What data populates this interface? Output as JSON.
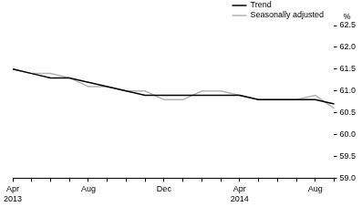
{
  "chart_data": {
    "type": "line",
    "ylabel": "%",
    "categories": [
      "Apr 2013",
      null,
      null,
      null,
      "Aug",
      null,
      null,
      null,
      "Dec",
      null,
      null,
      null,
      "Apr 2014",
      null,
      null,
      null,
      "Aug",
      null
    ],
    "series": [
      {
        "name": "Trend",
        "color": "#000000",
        "values": [
          61.5,
          61.4,
          61.3,
          61.3,
          61.2,
          61.1,
          61.0,
          60.9,
          60.9,
          60.9,
          60.9,
          60.9,
          60.9,
          60.8,
          60.8,
          60.8,
          60.8,
          60.7
        ]
      },
      {
        "name": "Seasonally adjusted",
        "color": "#b3b3b3",
        "values": [
          61.5,
          61.4,
          61.4,
          61.3,
          61.1,
          61.1,
          61.0,
          61.0,
          60.8,
          60.8,
          61.0,
          61.0,
          60.9,
          60.8,
          60.8,
          60.8,
          60.9,
          60.6
        ]
      }
    ],
    "ylim": [
      59,
      62.5
    ],
    "yticks": [
      {
        "value": 59,
        "label": "59.0"
      },
      59.5,
      {
        "value": 60,
        "label": "60.0"
      },
      60.5,
      {
        "value": 61,
        "label": "61.0"
      },
      61.5,
      {
        "value": 62,
        "label": "62.0"
      },
      62.5
    ],
    "grid": false,
    "legend": "upper right"
  }
}
